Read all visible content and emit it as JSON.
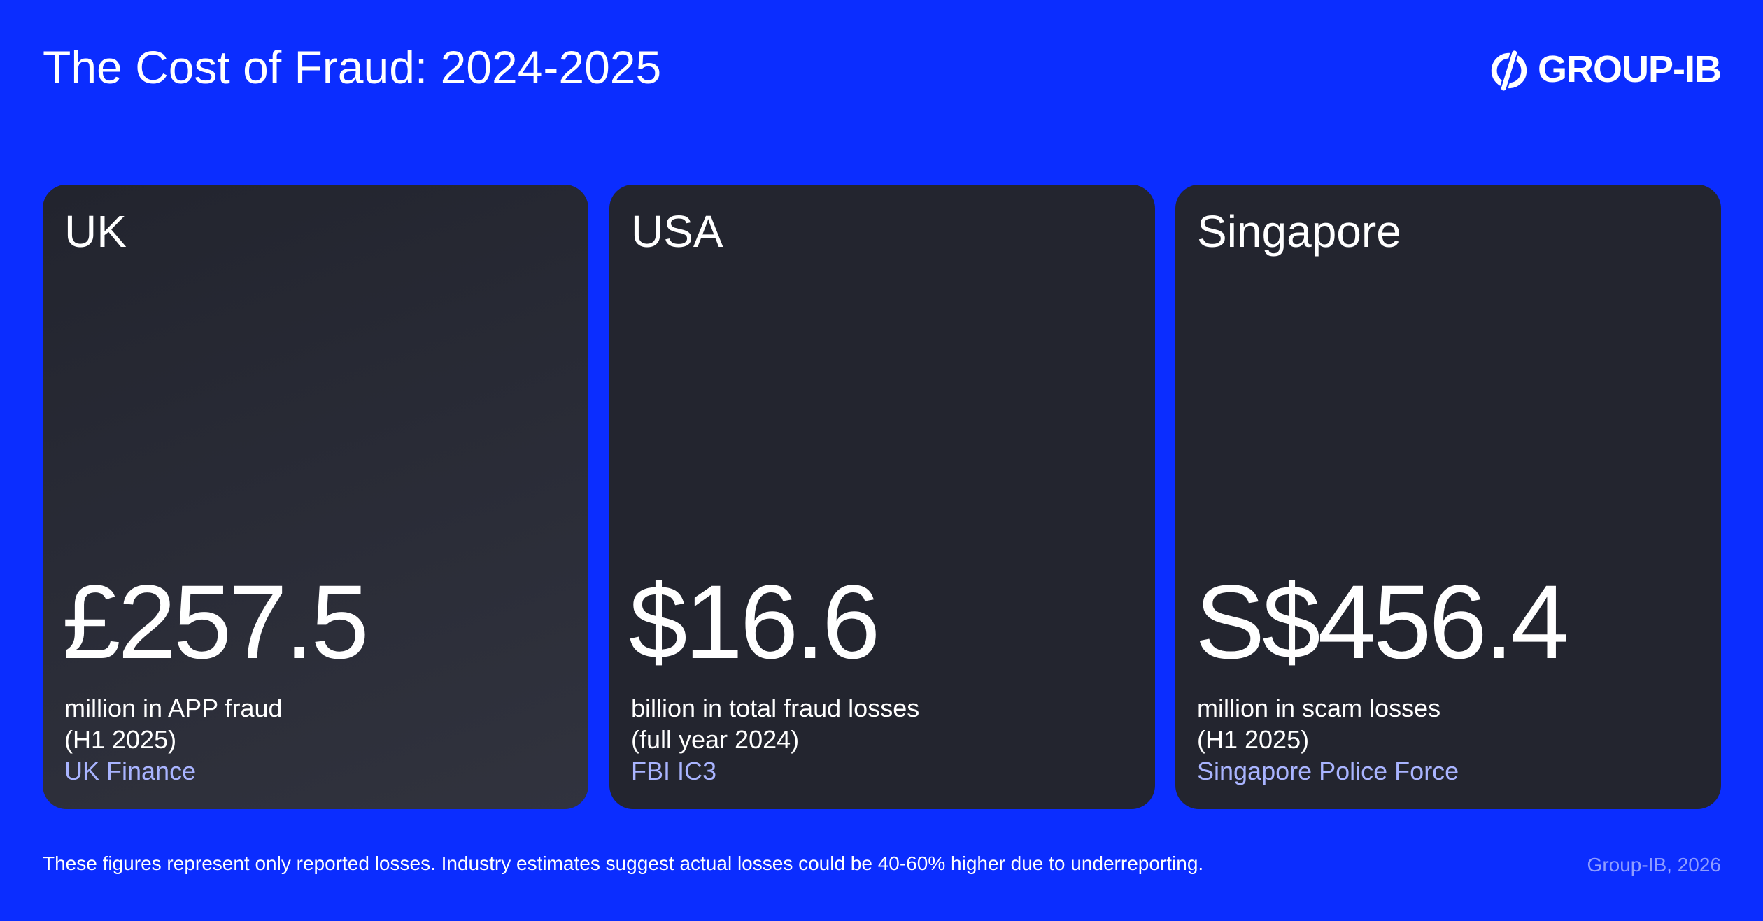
{
  "header": {
    "title": "The Cost of Fraud: 2024-2025",
    "logo_text": "GROUP-IB",
    "logo_icon": "group-ib-logo-icon"
  },
  "cards": [
    {
      "country": "UK",
      "value": "£257.5",
      "desc_line1": "million in APP fraud",
      "desc_line2": "(H1 2025)",
      "source": "UK Finance"
    },
    {
      "country": "USA",
      "value": "$16.6",
      "desc_line1": "billion in total fraud losses",
      "desc_line2": "(full year 2024)",
      "source": "FBI IC3"
    },
    {
      "country": "Singapore",
      "value": "S$456.4",
      "desc_line1": "million in scam losses",
      "desc_line2": "(H1 2025)",
      "source": "Singapore Police Force"
    }
  ],
  "footer": {
    "note": "These figures represent only reported losses. Industry estimates suggest actual losses could be 40-60% higher due to underreporting.",
    "credit": "Group-IB, 2026"
  },
  "colors": {
    "background": "#0b2dff",
    "card": "#23252f",
    "source_text": "#a9b4ff",
    "credit_text": "#8f9dff"
  }
}
